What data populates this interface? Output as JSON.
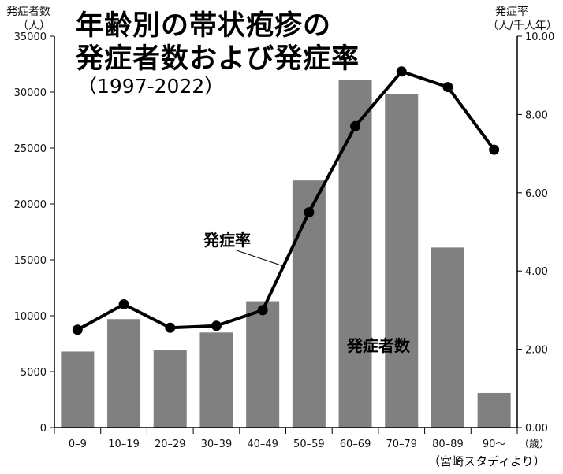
{
  "title_line1": "年齢別の帯状疱疹の",
  "title_line2": "発症者数および発症率",
  "subtitle": "（1997-2022）",
  "left_axis_label": "発症者数",
  "left_axis_unit": "（人）",
  "right_axis_label": "発症率",
  "right_axis_unit": "（人/千人年）",
  "x_unit": "（歳）",
  "source": "（宮崎スタディより）",
  "colors": {
    "bar": "#808080",
    "line": "#000000",
    "axis": "#000000"
  },
  "chart_data": {
    "type": "bar",
    "categories": [
      "0–9",
      "10–19",
      "20–29",
      "30–39",
      "40–49",
      "50–59",
      "60–69",
      "70–79",
      "80–89",
      "90～"
    ],
    "series": [
      {
        "name": "発症者数",
        "type": "bar",
        "axis": "left",
        "values": [
          6800,
          9700,
          6900,
          8500,
          11300,
          22100,
          31100,
          29800,
          16100,
          3100
        ]
      },
      {
        "name": "発症率",
        "type": "line",
        "axis": "right",
        "values": [
          2.5,
          3.15,
          2.55,
          2.6,
          3.0,
          5.5,
          7.7,
          9.1,
          8.7,
          7.1
        ]
      }
    ],
    "left_axis": {
      "ylim": [
        0,
        35000
      ],
      "ticks": [
        0,
        5000,
        10000,
        15000,
        20000,
        25000,
        30000,
        35000
      ]
    },
    "right_axis": {
      "ylim": [
        0,
        10
      ],
      "ticks": [
        "0.00",
        "2.00",
        "4.00",
        "6.00",
        "8.00",
        "10.00"
      ]
    }
  }
}
